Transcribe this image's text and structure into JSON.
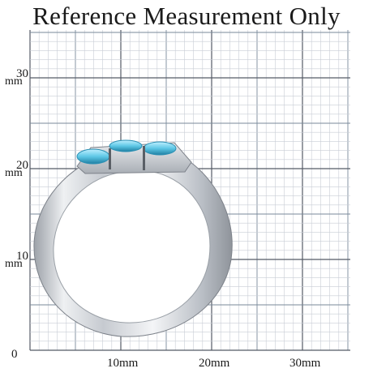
{
  "title": "Reference Measurement Only",
  "y_axis": {
    "labels": [
      {
        "value": "30",
        "unit": "mm"
      },
      {
        "value": "20",
        "unit": "mm"
      },
      {
        "value": "10",
        "unit": "mm"
      }
    ],
    "origin": "0"
  },
  "x_axis": {
    "labels": [
      "10mm",
      "20mm",
      "30mm"
    ]
  },
  "colors": {
    "grid_minor": "#c9cdd6",
    "grid_major": "#555a66",
    "grid_mid": "#7a8a9a",
    "metal_light": "#f2f3f5",
    "metal_mid": "#c8ccd2",
    "metal_dark": "#8d9299",
    "gem": "#5ec8e6",
    "gem_dark": "#2a8fb3"
  },
  "image": {
    "subject": "ring-silhouette-with-three-blue-stones"
  }
}
